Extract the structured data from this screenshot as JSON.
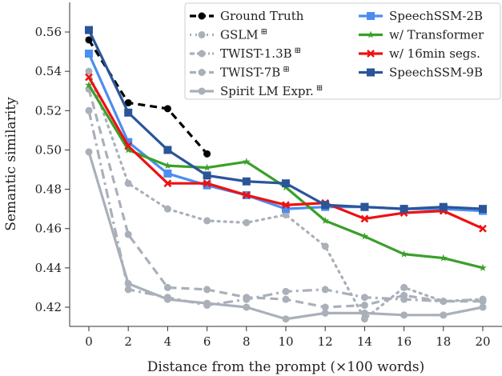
{
  "chart_data": {
    "type": "line",
    "xlabel": "Distance from the prompt (×100 words)",
    "ylabel": "Semantic similarity",
    "xlim": [
      -1,
      21
    ],
    "ylim": [
      0.405,
      0.575
    ],
    "xticks": [
      "0",
      "2",
      "4",
      "6",
      "8",
      "10",
      "12",
      "14",
      "16",
      "18",
      "20"
    ],
    "yticks": [
      "0.42",
      "0.44",
      "0.46",
      "0.48",
      "0.50",
      "0.52",
      "0.54",
      "0.56"
    ],
    "grid": false,
    "legend_placement": "top-right",
    "series": [
      {
        "name": "Ground Truth",
        "color": "#000000",
        "dash": "9,6",
        "marker": "circle",
        "x": [
          0,
          2,
          4,
          6
        ],
        "values": [
          0.556,
          0.524,
          0.521,
          0.498
        ]
      },
      {
        "name": "GSLM",
        "sup": "⊞",
        "color": "#aab0ba",
        "dash": "2,6",
        "marker": "circle",
        "x": [
          0,
          2,
          4,
          6,
          8,
          10,
          12,
          14,
          16,
          18,
          20
        ],
        "values": [
          0.54,
          0.483,
          0.47,
          0.464,
          0.463,
          0.467,
          0.451,
          0.414,
          0.43,
          0.423,
          0.424
        ]
      },
      {
        "name": "TWIST-1.3B",
        "sup": "⊞",
        "color": "#aab0ba",
        "dash": "12,5,3,5",
        "marker": "circle",
        "x": [
          0,
          2,
          4,
          6,
          8,
          10,
          12,
          14,
          16,
          18,
          20
        ],
        "values": [
          0.52,
          0.429,
          0.425,
          0.421,
          0.424,
          0.428,
          0.429,
          0.425,
          0.424,
          0.423,
          0.424
        ]
      },
      {
        "name": "TWIST-7B",
        "sup": "⊞",
        "color": "#aab0ba",
        "dash": "10,6",
        "marker": "circle",
        "x": [
          0,
          2,
          4,
          6,
          8,
          10,
          12,
          14,
          16,
          18,
          20
        ],
        "values": [
          0.531,
          0.457,
          0.43,
          0.429,
          0.425,
          0.424,
          0.42,
          0.421,
          0.426,
          0.423,
          0.423
        ]
      },
      {
        "name": "Spirit LM Expr.",
        "sup": "⊞",
        "color": "#aab0ba",
        "dash": "",
        "marker": "circle",
        "x": [
          0,
          2,
          4,
          6,
          8,
          10,
          12,
          14,
          16,
          18,
          20
        ],
        "values": [
          0.499,
          0.432,
          0.424,
          0.422,
          0.42,
          0.414,
          0.417,
          0.417,
          0.416,
          0.416,
          0.42
        ]
      },
      {
        "name": "SpeechSSM-2B",
        "color": "#4a8ef0",
        "dash": "",
        "marker": "square",
        "x": [
          0,
          2,
          4,
          6,
          8,
          10,
          12,
          14,
          16,
          18,
          20
        ],
        "values": [
          0.549,
          0.504,
          0.488,
          0.482,
          0.477,
          0.47,
          0.471,
          0.471,
          0.47,
          0.47,
          0.469
        ]
      },
      {
        "name": "w/ Transformer",
        "color": "#3aa02a",
        "dash": "",
        "marker": "star",
        "x": [
          0,
          2,
          4,
          6,
          8,
          10,
          12,
          14,
          16,
          18,
          20
        ],
        "values": [
          0.533,
          0.5,
          0.492,
          0.491,
          0.494,
          0.481,
          0.464,
          0.456,
          0.447,
          0.445,
          0.44
        ]
      },
      {
        "name": "w/ 16min segs.",
        "color": "#ee1111",
        "dash": "",
        "marker": "x",
        "x": [
          0,
          2,
          4,
          6,
          8,
          10,
          12,
          14,
          16,
          18,
          20
        ],
        "values": [
          0.537,
          0.502,
          0.483,
          0.483,
          0.477,
          0.472,
          0.473,
          0.465,
          0.468,
          0.469,
          0.46
        ]
      },
      {
        "name": "SpeechSSM-9B",
        "color": "#2a5599",
        "dash": "",
        "marker": "square",
        "x": [
          0,
          2,
          4,
          6,
          8,
          10,
          12,
          14,
          16,
          18,
          20
        ],
        "values": [
          0.561,
          0.519,
          0.5,
          0.487,
          0.484,
          0.483,
          0.472,
          0.471,
          0.47,
          0.471,
          0.47
        ]
      }
    ]
  }
}
